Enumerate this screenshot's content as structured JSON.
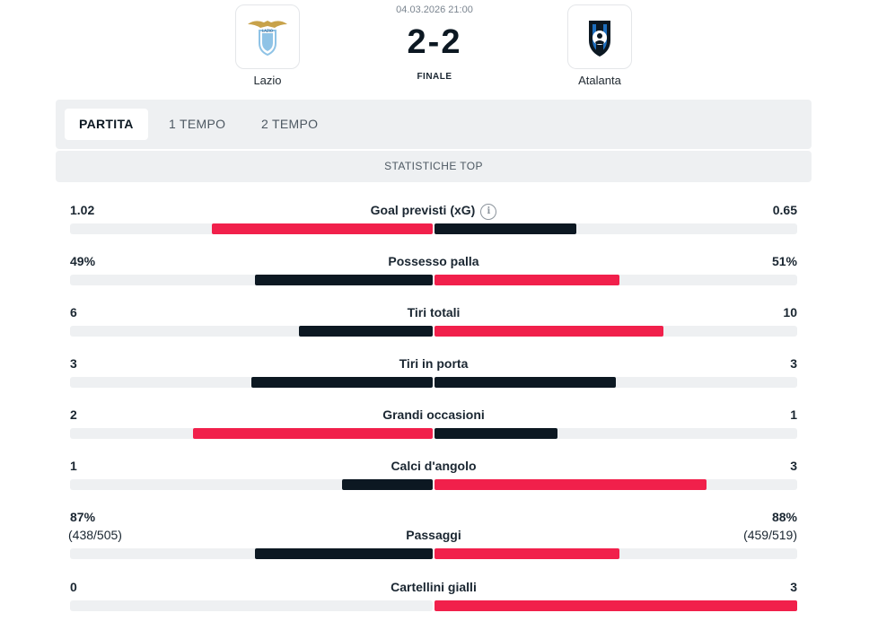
{
  "match": {
    "datetime": "04.03.2026 21:00",
    "score": "2-2",
    "status": "FINALE",
    "home": {
      "name": "Lazio",
      "logo": "lazio-eagle-crest-icon"
    },
    "away": {
      "name": "Atalanta",
      "logo": "atalanta-crest-icon"
    }
  },
  "tabs": [
    {
      "label": "PARTITA",
      "active": true
    },
    {
      "label": "1 TEMPO",
      "active": false
    },
    {
      "label": "2 TEMPO",
      "active": false
    }
  ],
  "section_title": "STATISTICHE TOP",
  "colors": {
    "highlight": "#f1204b",
    "dark": "#0c1822",
    "track": "#eef0f2"
  },
  "stats": [
    {
      "label": "Goal previsti (xG)",
      "home": "1.02",
      "away": "0.65",
      "home_ratio": 0.61,
      "away_ratio": 0.39,
      "leader": "home",
      "info": true
    },
    {
      "label": "Possesso palla",
      "home": "49%",
      "away": "51%",
      "home_ratio": 0.49,
      "away_ratio": 0.51,
      "leader": "away"
    },
    {
      "label": "Tiri totali",
      "home": "6",
      "away": "10",
      "home_ratio": 0.37,
      "away_ratio": 0.63,
      "leader": "away"
    },
    {
      "label": "Tiri in porta",
      "home": "3",
      "away": "3",
      "home_ratio": 0.5,
      "away_ratio": 0.5,
      "leader": "none"
    },
    {
      "label": "Grandi occasioni",
      "home": "2",
      "away": "1",
      "home_ratio": 0.66,
      "away_ratio": 0.34,
      "leader": "home"
    },
    {
      "label": "Calci d'angolo",
      "home": "1",
      "away": "3",
      "home_ratio": 0.25,
      "away_ratio": 0.75,
      "leader": "away"
    },
    {
      "label": "Passaggi",
      "home": "87%",
      "home_sub": "(438/505)",
      "away": "88%",
      "away_sub": "(459/519)",
      "home_ratio": 0.49,
      "away_ratio": 0.51,
      "leader": "away"
    },
    {
      "label": "Cartellini gialli",
      "home": "0",
      "away": "3",
      "home_ratio": 0.0,
      "away_ratio": 1.0,
      "leader": "away"
    }
  ]
}
